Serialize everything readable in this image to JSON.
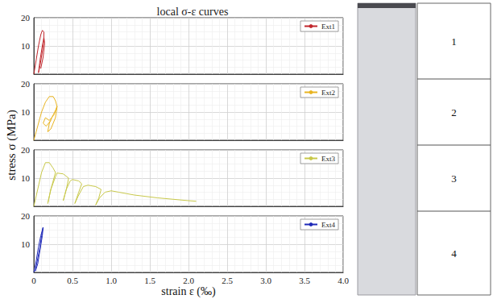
{
  "chart_data": {
    "title": "local σ-ε curves",
    "y_label": "stress σ (MPa)",
    "x_label": "strain ε (‰)",
    "panels": [
      {
        "type": "line",
        "grid": true,
        "legend": "top-right",
        "tick_labels": "y",
        "xlim": [
          0,
          4
        ],
        "xticks": [
          0,
          0.5,
          {
            "value": 1,
            "label": "1.0"
          },
          1.5,
          {
            "value": 2,
            "label": "2.0"
          },
          2.5,
          {
            "value": 3,
            "label": "3.0"
          },
          3.5,
          {
            "value": 4,
            "label": "4.0"
          }
        ],
        "ylim": [
          0,
          20
        ],
        "yticks": [
          10,
          20
        ],
        "series": [
          {
            "name": "Ext1",
            "color": "#c1272d",
            "x": [
              0,
              0.03,
              0.06,
              0.09,
              0.11,
              0.13,
              0.13,
              0.11,
              0.08,
              0.06,
              0.08,
              0.11,
              0.13,
              0.14,
              0.12,
              0.09
            ],
            "values": [
              0,
              5,
              10,
              14,
              15.5,
              15,
              12,
              8,
              3,
              0.5,
              5,
              10,
              13,
              11,
              6,
              2
            ]
          }
        ]
      },
      {
        "type": "line",
        "grid": true,
        "legend": "top-right",
        "tick_labels": "y",
        "xlim": [
          0,
          4
        ],
        "xticks": [
          0,
          0.5,
          {
            "value": 1,
            "label": "1.0"
          },
          1.5,
          {
            "value": 2,
            "label": "2.0"
          },
          2.5,
          {
            "value": 3,
            "label": "3.0"
          },
          3.5,
          {
            "value": 4,
            "label": "4.0"
          }
        ],
        "ylim": [
          0,
          20
        ],
        "yticks": [
          10,
          20
        ],
        "series": [
          {
            "name": "Ext2",
            "color": "#e8b422",
            "x": [
              0,
              0.05,
              0.1,
              0.15,
              0.2,
              0.25,
              0.28,
              0.3,
              0.28,
              0.22,
              0.18,
              0.2,
              0.25,
              0.29,
              0.3,
              0.26,
              0.2,
              0.15,
              0.12,
              0.16,
              0.22
            ],
            "values": [
              0,
              5,
              10,
              13.5,
              15.5,
              15.5,
              14,
              12,
              8,
              4,
              3,
              6,
              9,
              11,
              12,
              9,
              7,
              8,
              6,
              5,
              7
            ]
          }
        ]
      },
      {
        "type": "line",
        "grid": true,
        "legend": "top-right",
        "tick_labels": "y",
        "xlim": [
          0,
          4
        ],
        "xticks": [
          0,
          0.5,
          {
            "value": 1,
            "label": "1.0"
          },
          1.5,
          {
            "value": 2,
            "label": "2.0"
          },
          2.5,
          {
            "value": 3,
            "label": "3.0"
          },
          3.5,
          {
            "value": 4,
            "label": "4.0"
          }
        ],
        "ylim": [
          0,
          20
        ],
        "yticks": [
          10,
          20
        ],
        "series": [
          {
            "name": "Ext3",
            "color": "#c8c84a",
            "x": [
              0,
              0.05,
              0.1,
              0.15,
              0.2,
              0.25,
              0.28,
              0.22,
              0.18,
              0.22,
              0.28,
              0.3,
              0.38,
              0.45,
              0.42,
              0.38,
              0.42,
              0.47,
              0.5,
              0.58,
              0.62,
              0.58,
              0.53,
              0.58,
              0.64,
              0.7,
              0.8,
              0.87,
              0.84,
              0.8,
              0.85,
              0.92,
              1.0,
              1.1,
              1.2,
              1.3,
              1.6,
              2.0,
              2.1
            ],
            "values": [
              0,
              6,
              12,
              15.5,
              15.5,
              13.5,
              12,
              6,
              1,
              6,
              10.5,
              11.8,
              11.5,
              10,
              6,
              2,
              6,
              9,
              9.5,
              9,
              8,
              5,
              1,
              4,
              7,
              7.5,
              7,
              6,
              3,
              0.5,
              3,
              5,
              5.5,
              5,
              4.5,
              4,
              3,
              2,
              1.8
            ]
          }
        ]
      },
      {
        "type": "line",
        "grid": true,
        "legend": "top-right",
        "tick_labels": true,
        "xlim": [
          0,
          4
        ],
        "xticks": [
          0,
          0.5,
          {
            "value": 1,
            "label": "1.0"
          },
          1.5,
          {
            "value": 2,
            "label": "2.0"
          },
          2.5,
          {
            "value": 3,
            "label": "3.0"
          },
          3.5,
          {
            "value": 4,
            "label": "4.0"
          }
        ],
        "ylim": [
          0,
          20
        ],
        "yticks": [
          10,
          20
        ],
        "series": [
          {
            "name": "Ext4",
            "color": "#1f2ab8",
            "x": [
              0,
              0.03,
              0.06,
              0.09,
              0.12,
              0.11,
              0.08,
              0.05,
              0.02,
              0.05,
              0.08,
              0.1,
              0.12
            ],
            "values": [
              0,
              4,
              9,
              13,
              16,
              13,
              8,
              3,
              0.5,
              5,
              9,
              13,
              16
            ]
          }
        ]
      }
    ],
    "specimen": {
      "segments": [
        "1",
        "2",
        "3",
        "4"
      ]
    }
  }
}
